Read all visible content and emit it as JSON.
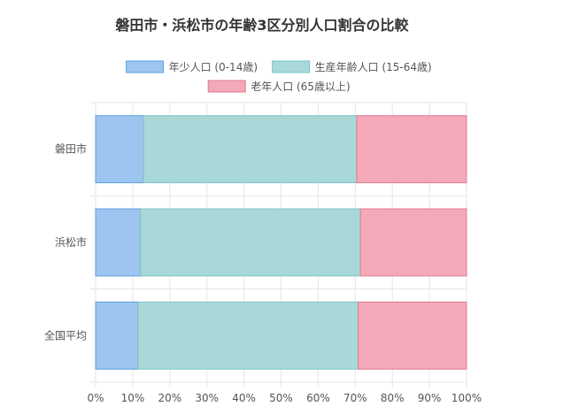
{
  "chart_data": {
    "type": "bar",
    "orientation": "horizontal",
    "stacked": true,
    "title": "磐田市・浜松市の年齢3区分別人口割合の比較",
    "categories": [
      "磐田市",
      "浜松市",
      "全国平均"
    ],
    "series": [
      {
        "name": "年少人口 (0-14歳)",
        "values": [
          12.9,
          12.1,
          11.4
        ],
        "color": "#9ec5f0",
        "stroke": "#5a9ee0"
      },
      {
        "name": "生産年齢人口 (15-64歳)",
        "values": [
          57.5,
          59.3,
          59.4
        ],
        "color": "#a8d8d8",
        "stroke": "#7cc4c4"
      },
      {
        "name": "老年人口 (65歳以上)",
        "values": [
          29.6,
          28.6,
          29.2
        ],
        "color": "#f4a9b8",
        "stroke": "#e07a90"
      }
    ],
    "x_ticks": [
      "0%",
      "10%",
      "20%",
      "30%",
      "40%",
      "50%",
      "60%",
      "70%",
      "80%",
      "90%",
      "100%"
    ],
    "xlim": [
      0,
      100
    ],
    "grid": true,
    "legend_position": "top"
  }
}
